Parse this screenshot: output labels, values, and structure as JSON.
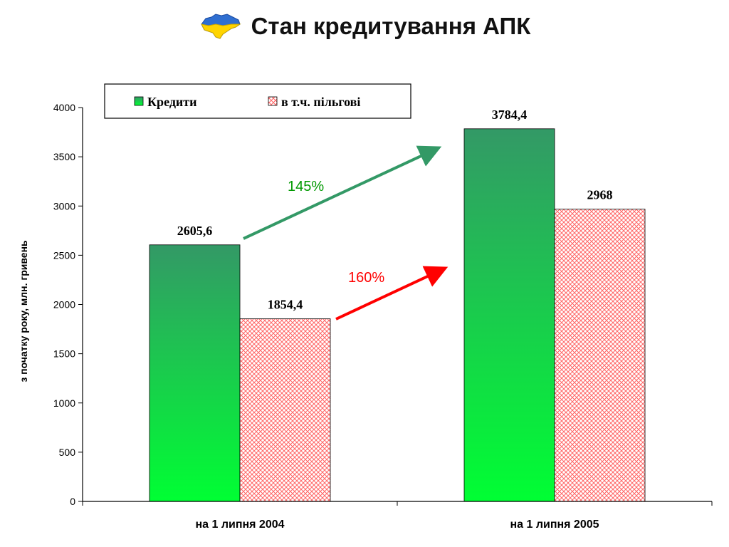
{
  "title": "Стан кредитування АПК",
  "colors": {
    "credit_top": "#339966",
    "credit_bottom": "#00ff33",
    "preferential": "#ff6666",
    "arrow_green": "#339966",
    "arrow_red": "#ff0000",
    "pct_green": "#009900",
    "pct_red": "#ff0000"
  },
  "chart_data": {
    "type": "bar",
    "categories": [
      "на 1 липня 2004",
      "на 1 липня 2005"
    ],
    "series": [
      {
        "name": "Кредити",
        "values": [
          2605.6,
          3784.4
        ],
        "labels": [
          "2605,6",
          "3784,4"
        ]
      },
      {
        "name": "в т.ч. пільгові",
        "values": [
          1854.4,
          2968
        ],
        "labels": [
          "1854,4",
          "2968"
        ]
      }
    ],
    "ylabel": "з початку року, млн. гривень",
    "ylim": [
      0,
      4000
    ],
    "yticks": [
      0,
      500,
      1000,
      1500,
      2000,
      2500,
      3000,
      3500,
      4000
    ],
    "legend_position": "top",
    "annotations": [
      {
        "text": "145%",
        "series": "Кредити",
        "color": "#009900"
      },
      {
        "text": "160%",
        "series": "в т.ч. пільгові",
        "color": "#ff0000"
      }
    ]
  }
}
